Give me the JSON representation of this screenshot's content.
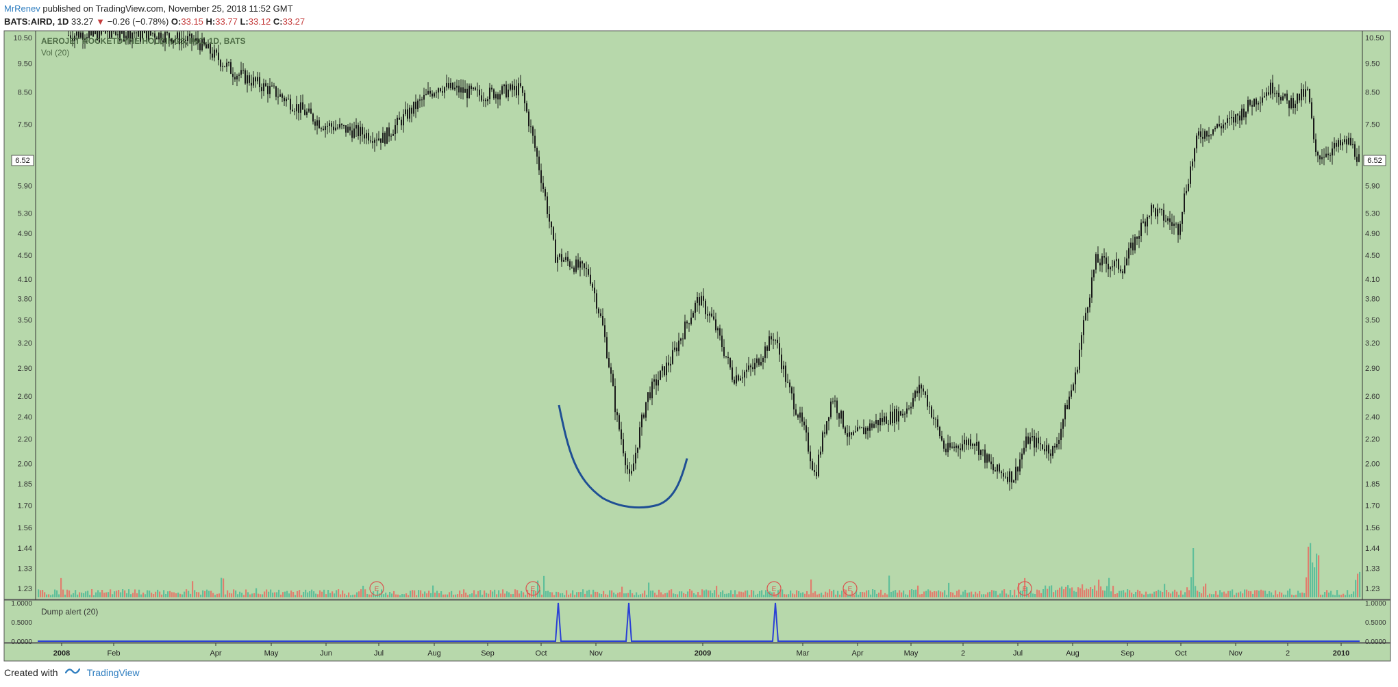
{
  "header": {
    "user": "MrRenev",
    "published_text": "published on TradingView.com, November 25, 2018 11:52 GMT",
    "symbol": "BATS:AIRD, 1D",
    "last": "33.27",
    "change_arrow": "▼",
    "change": "−0.26 (−0.78%)",
    "o_label": "O:",
    "o_value": "33.15",
    "h_label": "H:",
    "h_value": "33.77",
    "l_label": "L:",
    "l_value": "33.12",
    "c_label": "C:",
    "c_value": "33.27"
  },
  "footer": {
    "created_with": "Created with",
    "brand": "TradingView"
  },
  "colors": {
    "background": "#b7d8ab",
    "candle": "#1a1a1a",
    "volume_up": "#5fbf9a",
    "volume_down": "#e07e6e",
    "annotation_curve": "#1f4f94",
    "dump_line": "#2a3fd6",
    "earnings_marker": "#d9534f"
  },
  "chart_data": [
    {
      "type": "candlestick",
      "title": "AEROJET ROCKETDYNE HOLDINGS, INC, 1D, BATS",
      "volume_label": "Vol (20)",
      "scale": "log",
      "ylim": [
        1.16,
        11.2
      ],
      "y_ticks": [
        "10.50",
        "9.50",
        "8.50",
        "7.50",
        "6.52",
        "5.90",
        "5.30",
        "4.90",
        "4.50",
        "4.10",
        "3.80",
        "3.50",
        "3.20",
        "2.90",
        "2.60",
        "2.40",
        "2.20",
        "2.00",
        "1.85",
        "1.70",
        "1.56",
        "1.44",
        "1.33",
        "1.23"
      ],
      "last_price_label": "6.52",
      "x_labels": [
        "2008",
        "Feb",
        "Apr",
        "May",
        "Jun",
        "Jul",
        "Aug",
        "Sep",
        "Oct",
        "Nov",
        "2009",
        "Mar",
        "Apr",
        "May",
        "2",
        "Jul",
        "Aug",
        "Sep",
        "Oct",
        "Nov",
        "2",
        "2010"
      ],
      "price_path": [
        [
          "2008",
          10.6
        ],
        [
          "Feb",
          10.8
        ],
        [
          "Mar",
          10.7
        ],
        [
          "Apr",
          9.2
        ],
        [
          "May",
          8.5
        ],
        [
          "Jun",
          7.5
        ],
        [
          "Jul",
          7.1
        ],
        [
          "Aug",
          8.7
        ],
        [
          "Sep",
          8.6
        ],
        [
          "Oct",
          4.5
        ],
        [
          "Nov",
          2.4
        ],
        [
          "Nov",
          1.85
        ],
        [
          "Dec",
          3.3
        ],
        [
          "Dec",
          3.85
        ],
        [
          "2009",
          3.1
        ],
        [
          "Feb",
          3.3
        ],
        [
          "Mar",
          2.1
        ],
        [
          "Apr",
          2.6
        ],
        [
          "May",
          2.4
        ],
        [
          "Jun",
          2.7
        ],
        [
          "Jun",
          2.0
        ],
        [
          "Jul",
          1.9
        ],
        [
          "Aug",
          2.2
        ],
        [
          "Aug",
          3.5
        ],
        [
          "Sep",
          4.4
        ],
        [
          "Oct",
          5.4
        ],
        [
          "Nov",
          7.6
        ],
        [
          "Dec",
          8.7
        ],
        [
          "Dec",
          8.1
        ],
        [
          "Jan",
          6.6
        ],
        [
          "Jan",
          7.3
        ],
        [
          "2010",
          6.52
        ]
      ],
      "earnings_markers": [
        "E",
        "E",
        "E",
        "E",
        "E"
      ],
      "grid": false
    },
    {
      "type": "line",
      "title": "Dump alert (20)",
      "ylim": [
        0,
        1
      ],
      "y_ticks": [
        "1.0000",
        "0.5000",
        "0.0000"
      ],
      "spikes_at": [
        "Oct",
        "Nov",
        "Feb"
      ],
      "values_peak": 1,
      "values_base": 0
    }
  ]
}
